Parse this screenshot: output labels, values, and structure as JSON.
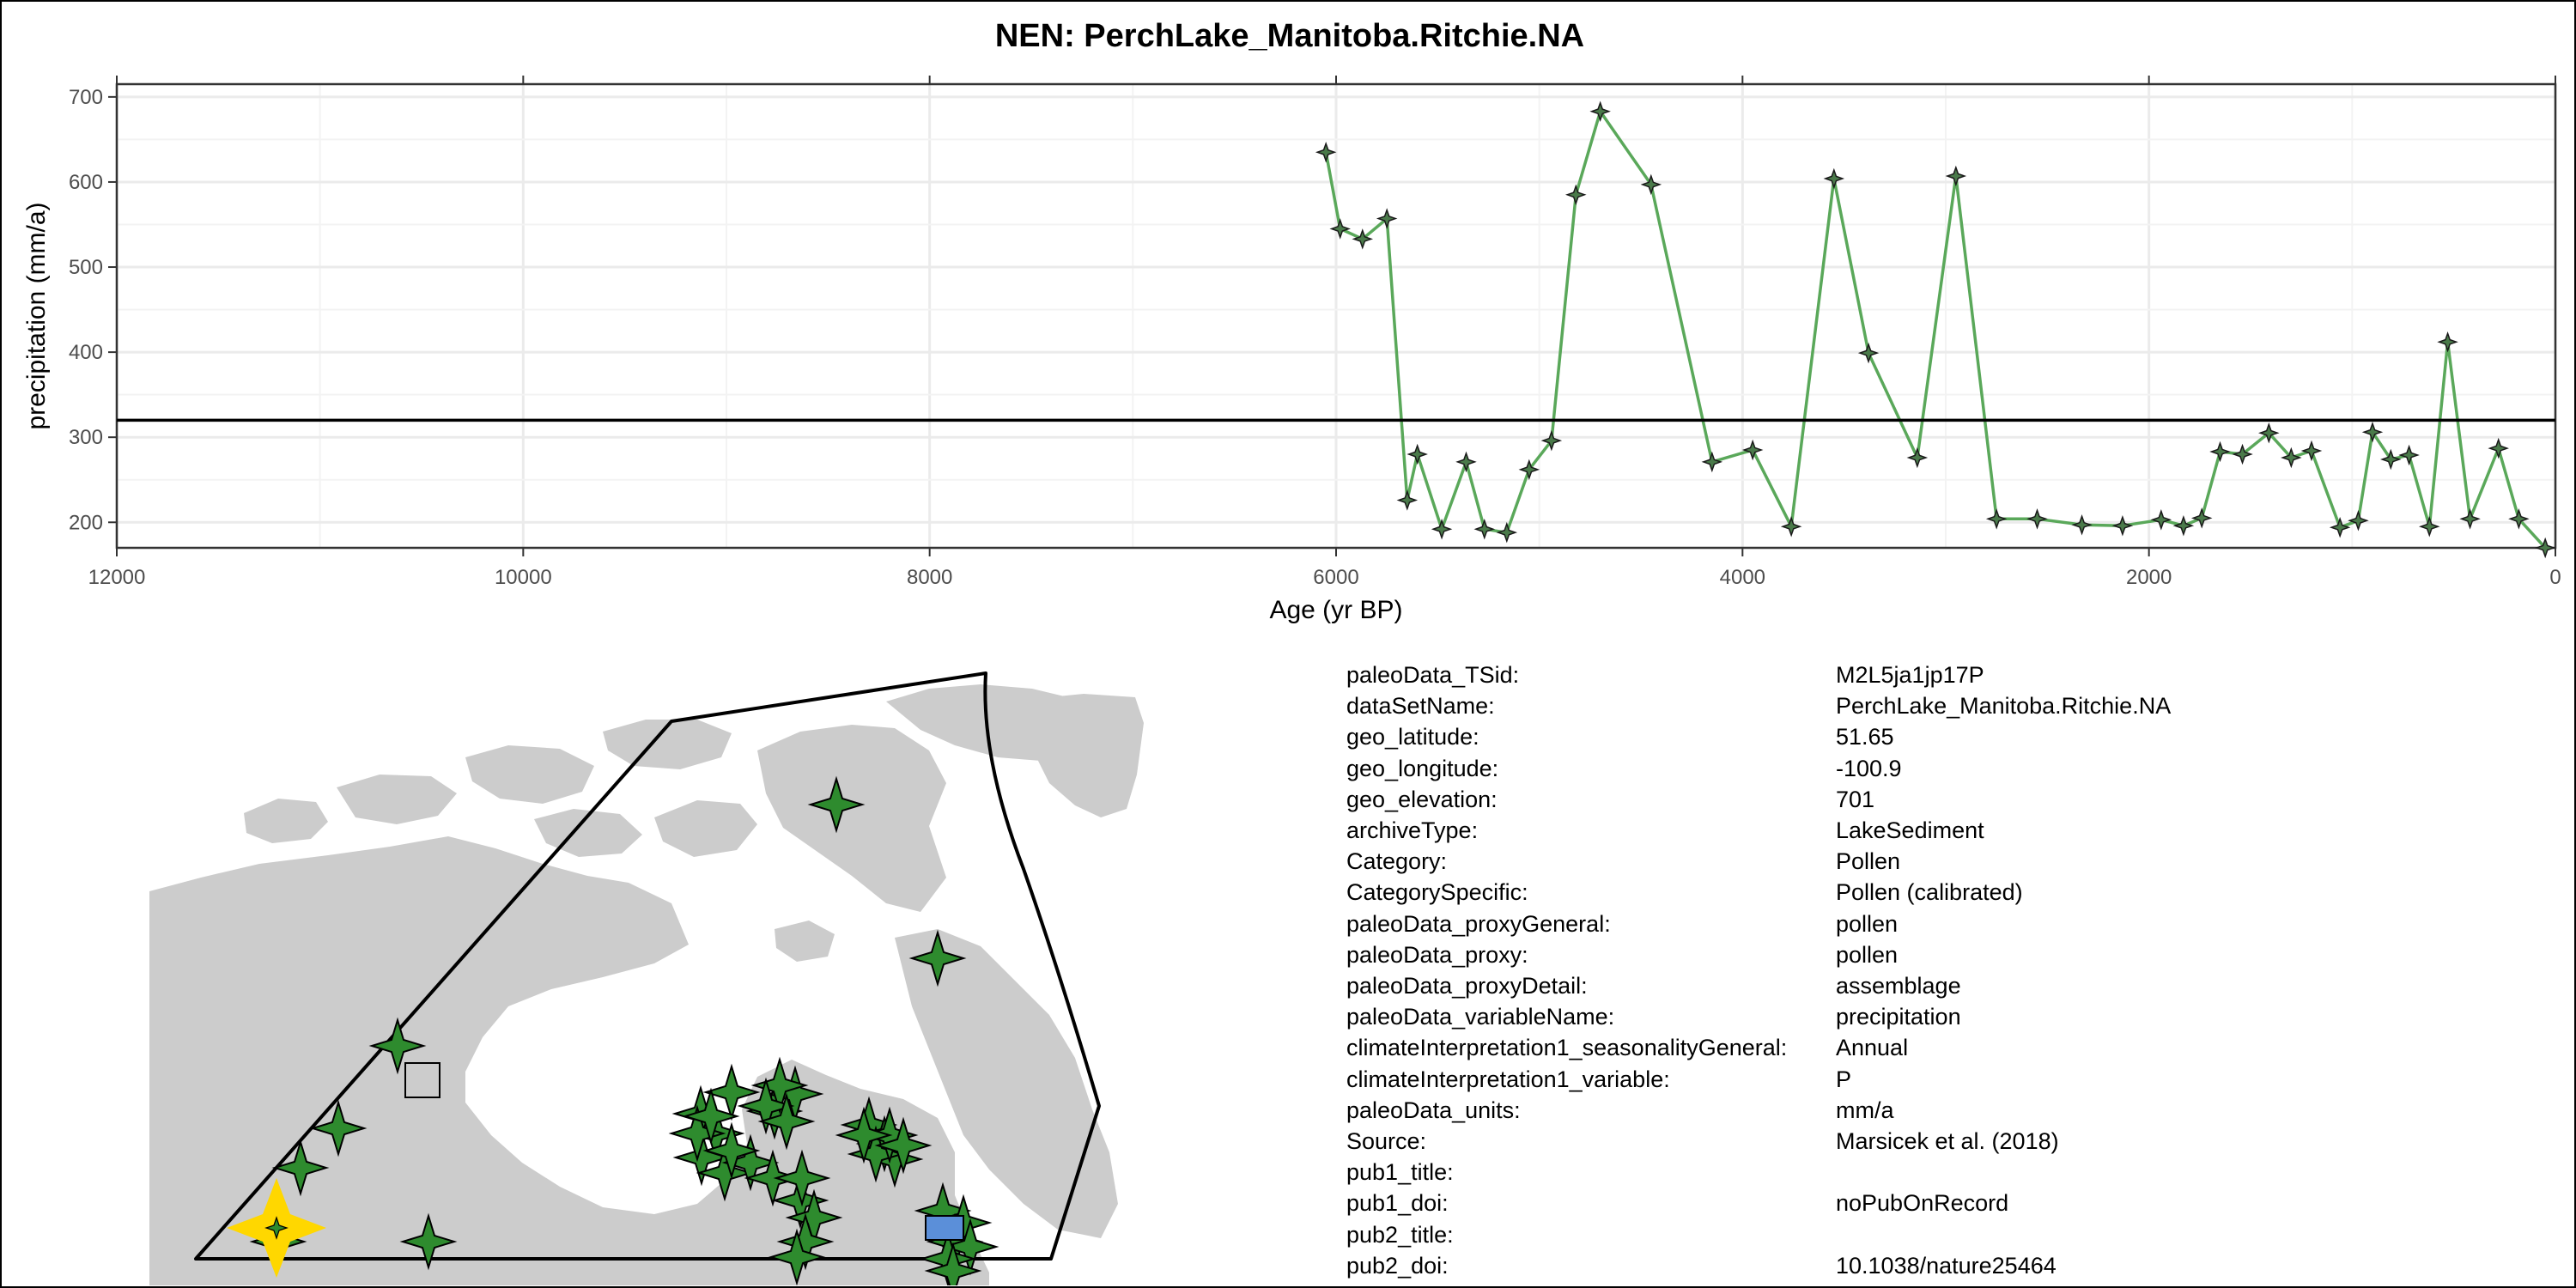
{
  "chart_data": {
    "type": "line",
    "title": "NEN: PerchLake_Manitoba.Ritchie.NA",
    "xlabel": "Age (yr BP)",
    "ylabel": "precipitation (mm/a)",
    "xlim": [
      12000,
      0
    ],
    "ylim": [
      170,
      715
    ],
    "x_reversed": true,
    "x_ticks": [
      12000,
      10000,
      8000,
      6000,
      4000,
      2000,
      0
    ],
    "x_tick_labels": [
      "12000",
      "10000",
      "8000",
      "6000",
      "4000",
      "2000",
      "0"
    ],
    "y_ticks": [
      200,
      300,
      400,
      500,
      600,
      700
    ],
    "y_tick_labels": [
      "200",
      "300",
      "400",
      "500",
      "600",
      "700"
    ],
    "grid": true,
    "reference_line_y": 320,
    "series": [
      {
        "color": "#5aa85a",
        "marker": "four-point-star",
        "x": [
          6050,
          5980,
          5870,
          5750,
          5650,
          5600,
          5480,
          5360,
          5270,
          5160,
          5050,
          4940,
          4820,
          4700,
          4450,
          4150,
          3950,
          3760,
          3550,
          3380,
          3140,
          2950,
          2750,
          2550,
          2330,
          2130,
          1940,
          1830,
          1740,
          1650,
          1540,
          1410,
          1300,
          1200,
          1060,
          970,
          900,
          810,
          720,
          620,
          530,
          420,
          280,
          180,
          50
        ],
        "y": [
          635,
          545,
          533,
          557,
          226,
          280,
          192,
          271,
          192,
          188,
          262,
          296,
          585,
          683,
          597,
          271,
          285,
          195,
          604,
          399,
          276,
          607,
          204,
          204,
          197,
          196,
          203,
          196,
          205,
          283,
          280,
          305,
          276,
          284,
          194,
          202,
          306,
          274,
          279,
          195,
          412,
          204,
          287,
          204,
          170
        ]
      }
    ]
  },
  "map": {
    "land_color": "#cccccc",
    "marker_color": "#2e8b2e",
    "highlight_color": "#ffd700",
    "site_box_color": "#5b8fd9",
    "marker_count": 40
  },
  "metadata": [
    {
      "key": "paleoData_TSid:",
      "value": "M2L5ja1jp17P"
    },
    {
      "key": "dataSetName:",
      "value": "PerchLake_Manitoba.Ritchie.NA"
    },
    {
      "key": "geo_latitude:",
      "value": "51.65"
    },
    {
      "key": "geo_longitude:",
      "value": "-100.9"
    },
    {
      "key": "geo_elevation:",
      "value": "701"
    },
    {
      "key": "archiveType:",
      "value": "LakeSediment"
    },
    {
      "key": "Category:",
      "value": "Pollen"
    },
    {
      "key": "CategorySpecific:",
      "value": "Pollen (calibrated)"
    },
    {
      "key": "paleoData_proxyGeneral:",
      "value": "pollen"
    },
    {
      "key": "paleoData_proxy:",
      "value": "pollen"
    },
    {
      "key": "paleoData_proxyDetail:",
      "value": "assemblage"
    },
    {
      "key": "paleoData_variableName:",
      "value": "precipitation"
    },
    {
      "key": "climateInterpretation1_seasonalityGeneral:",
      "value": "Annual"
    },
    {
      "key": "climateInterpretation1_variable:",
      "value": "P"
    },
    {
      "key": "paleoData_units:",
      "value": "mm/a"
    },
    {
      "key": "Source:",
      "value": "Marsicek et al. (2018)"
    },
    {
      "key": "pub1_title:",
      "value": ""
    },
    {
      "key": "pub1_doi:",
      "value": "noPubOnRecord"
    },
    {
      "key": "pub2_title:",
      "value": ""
    },
    {
      "key": "pub2_doi:",
      "value": "10.1038/nature25464"
    }
  ]
}
